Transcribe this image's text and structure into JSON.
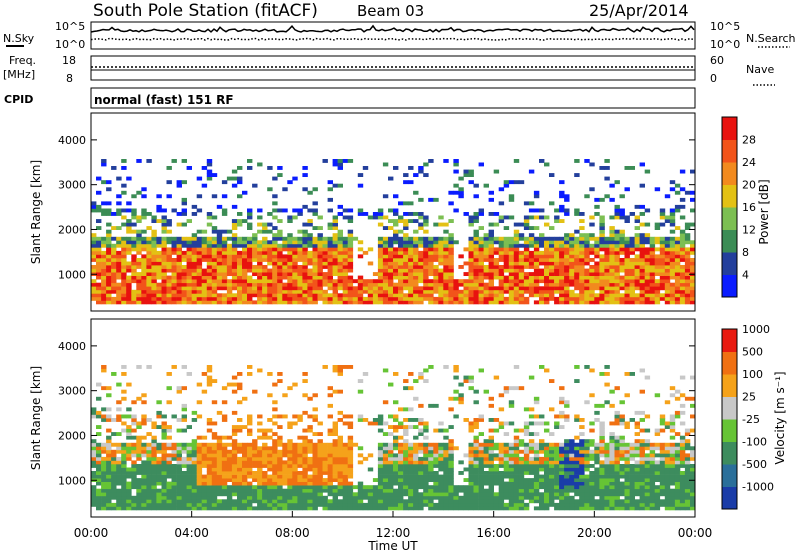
{
  "header": {
    "station": "South Pole Station (fitACF)",
    "beam": "Beam 03",
    "date": "25/Apr/2014"
  },
  "top_panels": {
    "nsky_label": "N.Sky",
    "nsky_ticks": [
      "10^5",
      "10^0"
    ],
    "nsearch_label": "N.Search",
    "nsearch_ticks": [
      "10^5",
      "10^0"
    ],
    "freq_label": "Freq.",
    "freq_unit": "[MHz]",
    "freq_ticks": [
      "18",
      "8"
    ],
    "nave_label": "Nave",
    "nave_ticks": [
      "60",
      "0"
    ],
    "cpid_label": "CPID",
    "cpid_text": "normal (fast) 151 RF"
  },
  "chart_data": [
    {
      "type": "heatmap",
      "panel": "power",
      "ylabel": "Slant Range [km]",
      "ylim": [
        180,
        4600
      ],
      "yticks": [
        "1000",
        "2000",
        "3000",
        "4000"
      ],
      "colorbar_label": "Power [dB]",
      "colorbar_ticks": [
        "4",
        "8",
        "12",
        "16",
        "20",
        "24",
        "28"
      ],
      "colors": [
        "#0a1cff",
        "#233f9c",
        "#3b8c55",
        "#7cbf52",
        "#e3c114",
        "#f28a1e",
        "#f2541a",
        "#e8120f"
      ],
      "dominant_band_km": [
        500,
        1500
      ],
      "peak_value_db": 28
    },
    {
      "type": "heatmap",
      "panel": "velocity",
      "ylabel": "Slant Range [km]",
      "ylim": [
        180,
        4600
      ],
      "yticks": [
        "1000",
        "2000",
        "3000",
        "4000"
      ],
      "colorbar_label": "Velocity [m s⁻¹]",
      "colorbar_ticks": [
        "1000",
        "500",
        "100",
        "25",
        "-25",
        "-100",
        "-500",
        "-1000"
      ],
      "colors": [
        "#1a3ca8",
        "#2a6f9a",
        "#3d8c5e",
        "#66c435",
        "#c8c8c8",
        "#f5a21a",
        "#f07012",
        "#e81a10"
      ],
      "xlabel": "Time UT",
      "xticks": [
        "00:00",
        "04:00",
        "08:00",
        "12:00",
        "16:00",
        "20:00",
        "00:00"
      ]
    }
  ]
}
